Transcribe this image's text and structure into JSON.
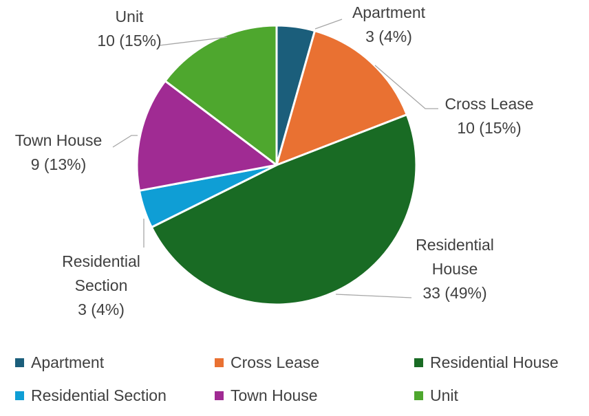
{
  "chart_data": {
    "type": "pie",
    "categories": [
      "Apartment",
      "Cross Lease",
      "Residential House",
      "Residential Section",
      "Town House",
      "Unit"
    ],
    "values": [
      3,
      10,
      33,
      3,
      9,
      10
    ],
    "percentages": [
      "4%",
      "15%",
      "49%",
      "4%",
      "13%",
      "15%"
    ],
    "colors": [
      "#1B5E7B",
      "#E97132",
      "#196B24",
      "#0F9ED5",
      "#A02B93",
      "#4EA72E"
    ],
    "title": "",
    "legend_position": "bottom",
    "data_labels": [
      {
        "name_lines": [
          "Apartment"
        ],
        "value_line": "3 (4%)"
      },
      {
        "name_lines": [
          "Cross Lease"
        ],
        "value_line": "10 (15%)"
      },
      {
        "name_lines": [
          "Residential",
          "House"
        ],
        "value_line": "33 (49%)"
      },
      {
        "name_lines": [
          "Residential",
          "Section"
        ],
        "value_line": "3 (4%)"
      },
      {
        "name_lines": [
          "Town House"
        ],
        "value_line": "9 (13%)"
      },
      {
        "name_lines": [
          "Unit"
        ],
        "value_line": "10 (15%)"
      }
    ]
  }
}
